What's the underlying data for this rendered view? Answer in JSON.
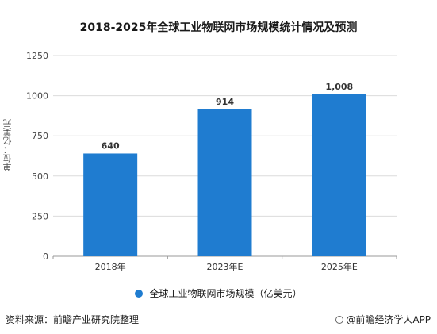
{
  "chart_data": {
    "type": "bar",
    "title": "2018-2025年全球工业物联网市场规模统计情况及预测",
    "ylabel": "单位：亿美元",
    "xlabel": "",
    "categories": [
      "2018年",
      "2023年E",
      "2025年E"
    ],
    "series": [
      {
        "name": "全球工业物联网市场规模（亿美元）",
        "values": [
          640,
          914,
          1008
        ],
        "color": "#1f7cd0"
      }
    ],
    "data_labels": [
      "640",
      "914",
      "1,008"
    ],
    "ylim": [
      0,
      1250
    ],
    "yticks": [
      0,
      250,
      500,
      750,
      1000,
      1250
    ],
    "grid": true,
    "legend": "bottom"
  },
  "footer": {
    "source": "资料来源：前瞻产业研究院整理",
    "brand": "@前瞻经济学人APP"
  }
}
